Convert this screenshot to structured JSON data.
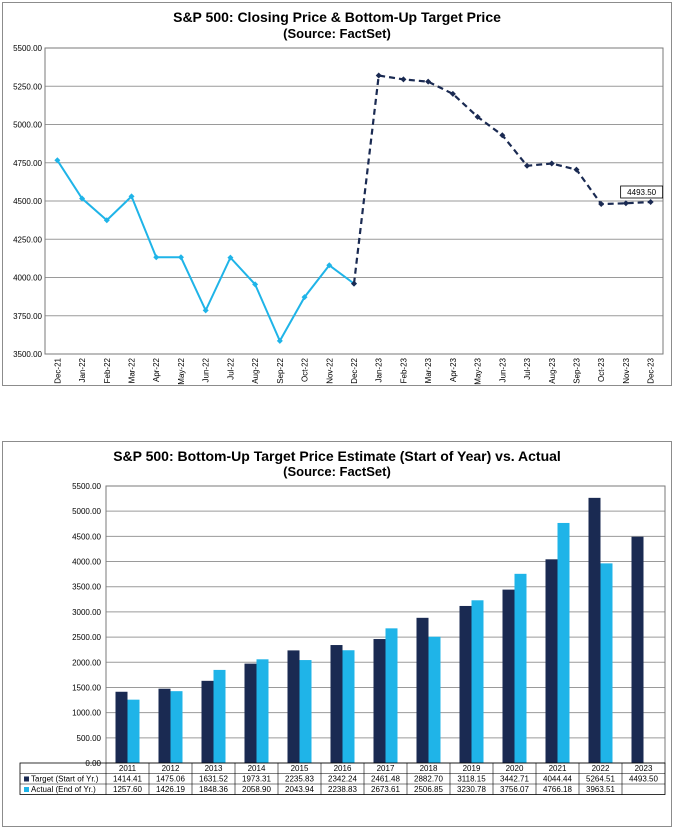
{
  "chart_data": [
    {
      "type": "line",
      "title": "S&P 500: Closing Price & Bottom-Up Target Price",
      "subtitle": "(Source: FactSet)",
      "x": [
        "Dec-21",
        "Jan-22",
        "Feb-22",
        "Mar-22",
        "Apr-22",
        "May-22",
        "Jun-22",
        "Jul-22",
        "Aug-22",
        "Sep-22",
        "Oct-22",
        "Nov-22",
        "Dec-22",
        "Jan-23",
        "Feb-23",
        "Mar-23",
        "Apr-23",
        "May-23",
        "Jun-23",
        "Jul-23",
        "Aug-23",
        "Sep-23",
        "Oct-23",
        "Nov-23",
        "Dec-23"
      ],
      "series": [
        {
          "style": "solid",
          "color": "#1fb4e8",
          "values": [
            4766,
            4516,
            4374,
            4530,
            4132,
            4132,
            3785,
            4130,
            3955,
            3586,
            3872,
            4080,
            3960,
            null,
            null,
            null,
            null,
            null,
            null,
            null,
            null,
            null,
            null,
            null,
            null
          ]
        },
        {
          "style": "dashed",
          "color": "#1a2a52",
          "values": [
            null,
            null,
            null,
            null,
            null,
            null,
            null,
            null,
            null,
            null,
            null,
            null,
            3960,
            5320,
            5295,
            5280,
            5200,
            5050,
            4930,
            4730,
            4745,
            4705,
            4480,
            4485,
            4493.5
          ]
        }
      ],
      "annotation": "4493.50",
      "y_ticks": [
        "3500.00",
        "3750.00",
        "4000.00",
        "4250.00",
        "4500.00",
        "4750.00",
        "5000.00",
        "5250.00",
        "5500.00"
      ],
      "ylim": [
        3500,
        5500
      ],
      "grid": true
    },
    {
      "type": "bar",
      "title": "S&P 500: Bottom-Up Target Price Estimate (Start of Year) vs. Actual",
      "subtitle": "(Source: FactSet)",
      "categories": [
        "2011",
        "2012",
        "2013",
        "2014",
        "2015",
        "2016",
        "2017",
        "2018",
        "2019",
        "2020",
        "2021",
        "2022",
        "2023"
      ],
      "series": [
        {
          "name": "Target (Start of Yr.)",
          "color": "#1a2a52",
          "values": [
            1414.41,
            1475.06,
            1631.52,
            1973.31,
            2235.83,
            2342.24,
            2461.48,
            2882.7,
            3118.15,
            3442.71,
            4044.44,
            5264.51,
            4493.5
          ],
          "labels": [
            "1414.41",
            "1475.06",
            "1631.52",
            "1973.31",
            "2235.83",
            "2342.24",
            "2461.48",
            "2882.70",
            "3118.15",
            "3442.71",
            "4044.44",
            "5264.51",
            "4493.50"
          ]
        },
        {
          "name": "Actual (End of Yr.)",
          "color": "#1fb4e8",
          "values": [
            1257.6,
            1426.19,
            1848.36,
            2058.9,
            2043.94,
            2238.83,
            2673.61,
            2506.85,
            3230.78,
            3756.07,
            4766.18,
            3963.51,
            null
          ],
          "labels": [
            "1257.60",
            "1426.19",
            "1848.36",
            "2058.90",
            "2043.94",
            "2238.83",
            "2673.61",
            "2506.85",
            "3230.78",
            "3756.07",
            "4766.18",
            "3963.51",
            ""
          ]
        }
      ],
      "y_ticks": [
        "0.00",
        "500.00",
        "1000.00",
        "1500.00",
        "2000.00",
        "2500.00",
        "3000.00",
        "3500.00",
        "4000.00",
        "4500.00",
        "5000.00",
        "5500.00"
      ],
      "ylim": [
        0,
        5500
      ],
      "grid": true
    }
  ]
}
